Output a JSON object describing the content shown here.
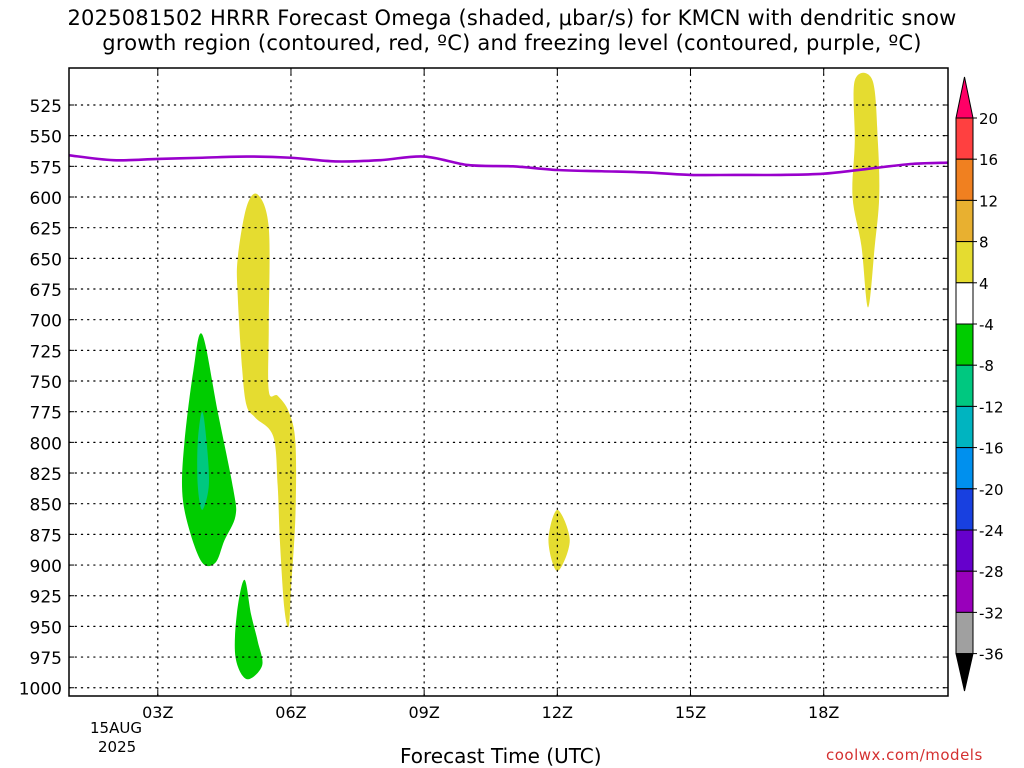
{
  "title_line1": "2025081502 HRRR Forecast Omega (shaded, μbar/s) for KMCN with dendritic snow",
  "title_line2": "growth region (contoured, red, ºC) and freezing level (contoured, purple, ºC)",
  "credit": "coolwx.com/models",
  "chart_data": {
    "type": "area",
    "xlabel": "Forecast Time (UTC)",
    "x_date_line1": "15AUG",
    "x_date_line2": "2025",
    "x_range_hours": [
      1.0,
      20.8
    ],
    "x_ticks": [
      {
        "h": 3,
        "label": "03Z"
      },
      {
        "h": 6,
        "label": "06Z"
      },
      {
        "h": 9,
        "label": "09Z"
      },
      {
        "h": 12,
        "label": "12Z"
      },
      {
        "h": 15,
        "label": "15Z"
      },
      {
        "h": 18,
        "label": "18Z"
      }
    ],
    "y_label": "",
    "y_range_hpa": [
      1012,
      505
    ],
    "y_ticks": [
      525,
      550,
      575,
      600,
      625,
      650,
      675,
      700,
      725,
      750,
      775,
      800,
      825,
      850,
      875,
      900,
      925,
      950,
      975,
      1000
    ],
    "grid": true,
    "colorbar": {
      "label_values": [
        20,
        16,
        12,
        8,
        4,
        -4,
        -8,
        -12,
        -16,
        -20,
        -24,
        -28,
        -32,
        -36
      ],
      "colors": [
        "#ff0066",
        "#ff4040",
        "#f08020",
        "#e8b030",
        "#e5dc30",
        "#ffffff",
        "#00cc00",
        "#00c880",
        "#00b4c0",
        "#0090ee",
        "#1840e0",
        "#6600cc",
        "#9900bb",
        "#a0a0a0",
        "#000000"
      ]
    },
    "shaded_regions": [
      {
        "fill": "#e5dc30",
        "band": "4 to 8",
        "outline": [
          [
            5.0,
            608
          ],
          [
            5.25,
            598
          ],
          [
            5.5,
            625
          ],
          [
            5.5,
            705
          ],
          [
            5.5,
            758
          ],
          [
            5.7,
            762
          ],
          [
            5.95,
            775
          ],
          [
            6.1,
            800
          ],
          [
            6.1,
            860
          ],
          [
            6.0,
            920
          ],
          [
            5.95,
            950
          ],
          [
            5.85,
            935
          ],
          [
            5.75,
            880
          ],
          [
            5.7,
            835
          ],
          [
            5.6,
            795
          ],
          [
            5.2,
            780
          ],
          [
            5.0,
            770
          ],
          [
            4.9,
            740
          ],
          [
            4.8,
            680
          ],
          [
            4.8,
            650
          ]
        ]
      },
      {
        "fill": "#00cc00",
        "band": "-4 to -8",
        "outline": [
          [
            4.0,
            712
          ],
          [
            4.35,
            775
          ],
          [
            4.7,
            838
          ],
          [
            4.75,
            860
          ],
          [
            4.5,
            880
          ],
          [
            4.3,
            898
          ],
          [
            4.0,
            898
          ],
          [
            3.7,
            870
          ],
          [
            3.55,
            840
          ],
          [
            3.6,
            800
          ],
          [
            3.8,
            742
          ]
        ]
      },
      {
        "fill": "#00c880",
        "band": "-8 to -12",
        "outline": [
          [
            4.0,
            775
          ],
          [
            4.1,
            800
          ],
          [
            4.15,
            835
          ],
          [
            4.0,
            855
          ],
          [
            3.9,
            835
          ],
          [
            3.9,
            800
          ]
        ]
      },
      {
        "fill": "#00cc00",
        "band": "-4 to -8",
        "outline": [
          [
            4.95,
            912
          ],
          [
            5.1,
            940
          ],
          [
            5.25,
            962
          ],
          [
            5.35,
            982
          ],
          [
            5.0,
            993
          ],
          [
            4.75,
            975
          ],
          [
            4.78,
            940
          ]
        ]
      },
      {
        "fill": "#e5dc30",
        "band": "4 to 8",
        "outline": [
          [
            12.0,
            855
          ],
          [
            12.28,
            880
          ],
          [
            12.0,
            905
          ],
          [
            11.8,
            880
          ]
        ]
      },
      {
        "fill": "#e5dc30",
        "band": "4 to 8",
        "outline": [
          [
            18.7,
            505
          ],
          [
            19.1,
            505
          ],
          [
            19.22,
            555
          ],
          [
            19.25,
            600
          ],
          [
            19.15,
            640
          ],
          [
            19.0,
            690
          ],
          [
            18.85,
            640
          ],
          [
            18.65,
            600
          ],
          [
            18.7,
            555
          ]
        ]
      }
    ],
    "freezing_level": {
      "color": "#9900cc",
      "points": [
        [
          1.0,
          566
        ],
        [
          2.0,
          570
        ],
        [
          3.0,
          569
        ],
        [
          4.0,
          568
        ],
        [
          5.0,
          567
        ],
        [
          6.0,
          568
        ],
        [
          7.0,
          571
        ],
        [
          8.0,
          570
        ],
        [
          9.0,
          567
        ],
        [
          10.0,
          574
        ],
        [
          11.0,
          575
        ],
        [
          12.0,
          578
        ],
        [
          13.0,
          579
        ],
        [
          14.0,
          580
        ],
        [
          15.0,
          582
        ],
        [
          16.0,
          582
        ],
        [
          17.0,
          582
        ],
        [
          18.0,
          581
        ],
        [
          19.0,
          577
        ],
        [
          20.0,
          573
        ],
        [
          20.8,
          572
        ]
      ]
    },
    "surface": {
      "color": "#b07040",
      "points": [
        [
          1.0,
          1008
        ],
        [
          12.8,
          1008
        ],
        [
          12.9,
          1010
        ],
        [
          17.6,
          1010
        ],
        [
          17.9,
          1008
        ],
        [
          20.8,
          1008
        ]
      ]
    }
  }
}
